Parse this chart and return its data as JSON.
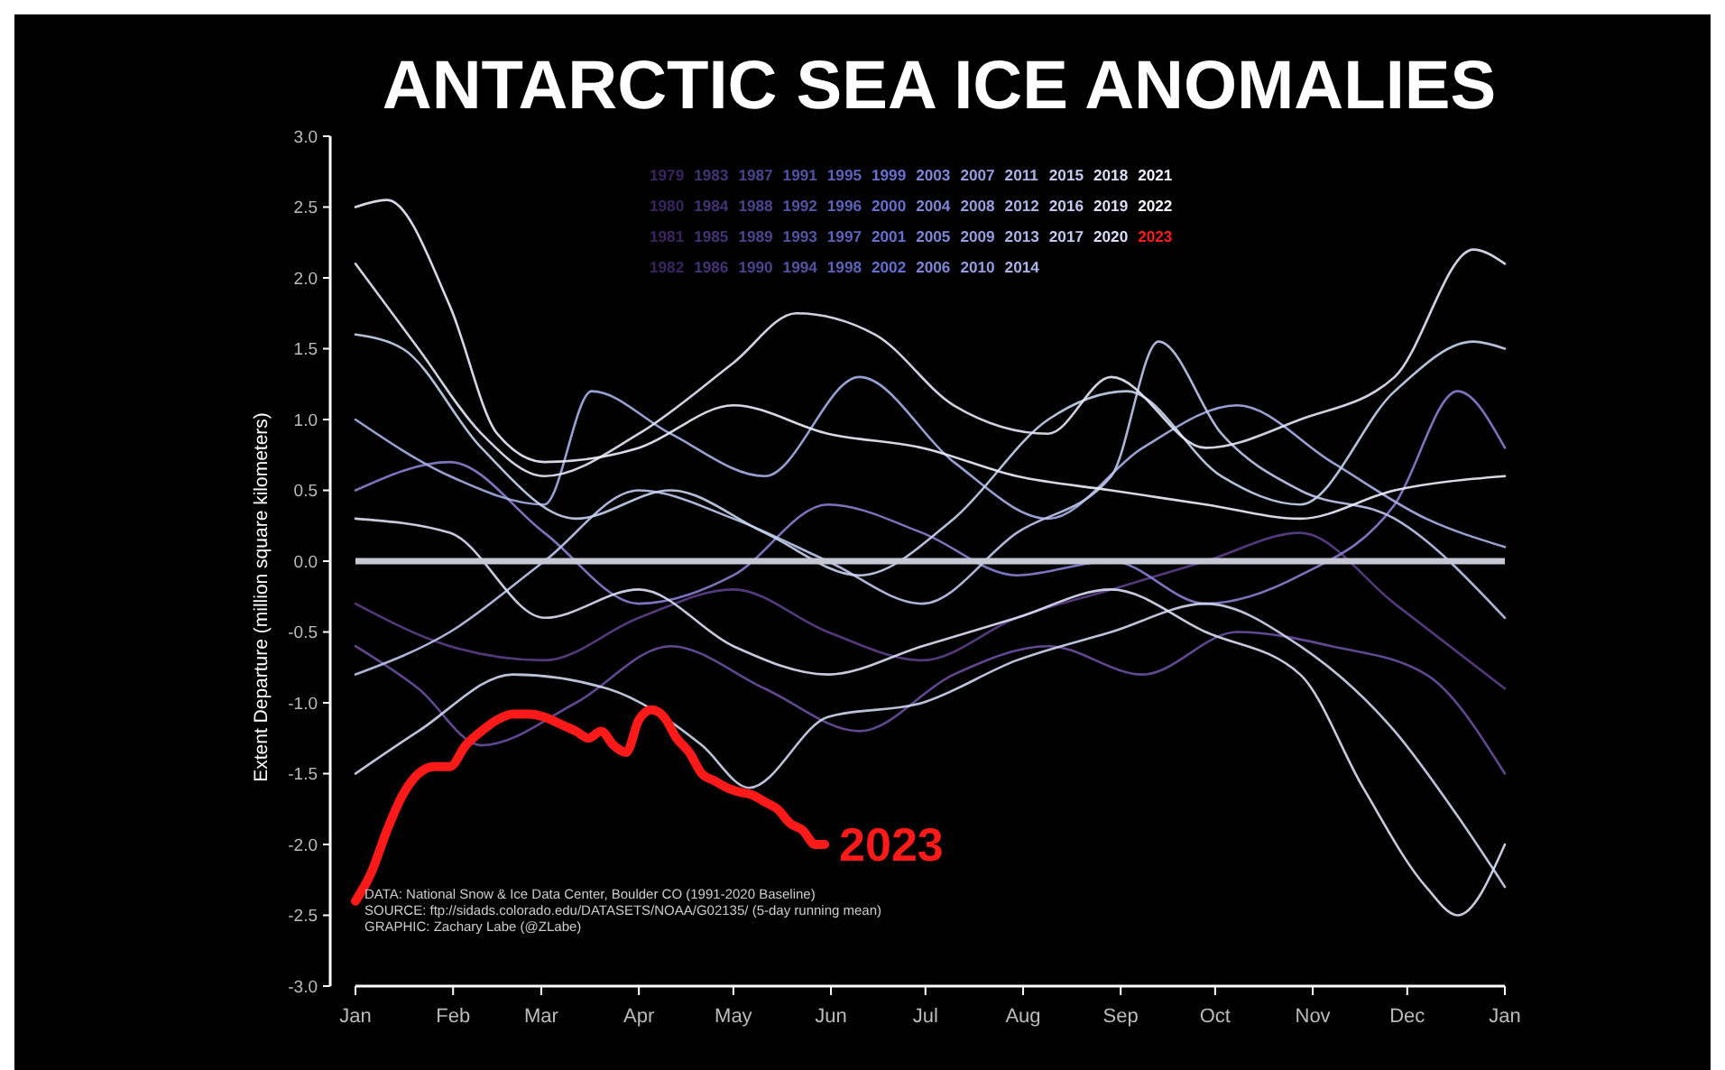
{
  "chart_data": {
    "type": "line",
    "title": "ANTARCTIC SEA ICE ANOMALIES",
    "ylabel": "Extent Departure (million square kilometers)",
    "xlim": [
      "2023-01-01",
      "2024-01-01"
    ],
    "xticks": [
      {
        "value": "2023-01-01",
        "label": "Jan"
      },
      {
        "value": "2023-02-01",
        "label": "Feb"
      },
      {
        "value": "2023-03-01",
        "label": "Mar"
      },
      {
        "value": "2023-04-01",
        "label": "Apr"
      },
      {
        "value": "2023-05-01",
        "label": "May"
      },
      {
        "value": "2023-06-01",
        "label": "Jun"
      },
      {
        "value": "2023-07-01",
        "label": "Jul"
      },
      {
        "value": "2023-08-01",
        "label": "Aug"
      },
      {
        "value": "2023-09-01",
        "label": "Sep"
      },
      {
        "value": "2023-10-01",
        "label": "Oct"
      },
      {
        "value": "2023-11-01",
        "label": "Nov"
      },
      {
        "value": "2023-12-01",
        "label": "Dec"
      },
      {
        "value": "2024-01-01",
        "label": "Jan"
      }
    ],
    "ylim": [
      -3,
      3
    ],
    "yticks": [
      {
        "value": 3,
        "label": "3.0"
      },
      {
        "value": 2.5,
        "label": "2.5"
      },
      {
        "value": 2,
        "label": "2.0"
      },
      {
        "value": 1.5,
        "label": "1.5"
      },
      {
        "value": 1,
        "label": "1.0"
      },
      {
        "value": 0.5,
        "label": "0.5"
      },
      {
        "value": 0,
        "label": "0.0"
      },
      {
        "value": -0.5,
        "label": "-0.5"
      },
      {
        "value": -1,
        "label": "-1.0"
      },
      {
        "value": -1.5,
        "label": "-1.5"
      },
      {
        "value": -2,
        "label": "-2.0"
      },
      {
        "value": -2.5,
        "label": "-2.5"
      },
      {
        "value": -3,
        "label": "-3.0"
      }
    ],
    "grid": false,
    "series": [
      {
        "color": "#5c3f8a",
        "x": [
          "2023-01-01",
          "2023-01-31",
          "2023-03-02",
          "2023-04-01",
          "2023-05-01",
          "2023-05-31",
          "2023-06-30",
          "2023-07-30",
          "2023-08-29",
          "2023-09-28",
          "2023-10-28",
          "2023-11-27",
          "2024-01-01"
        ],
        "values": [
          -0.3,
          -0.6,
          -0.7,
          -0.4,
          -0.2,
          -0.5,
          -0.7,
          -0.4,
          -0.2,
          0,
          0.2,
          -0.3,
          -0.9
        ]
      },
      {
        "color": "#6a4fa0",
        "x": [
          "2023-01-01",
          "2023-01-21",
          "2023-02-10",
          "2023-03-12",
          "2023-04-11",
          "2023-05-11",
          "2023-06-10",
          "2023-07-10",
          "2023-08-09",
          "2023-09-08",
          "2023-10-08",
          "2023-11-07",
          "2023-12-07",
          "2024-01-01"
        ],
        "values": [
          -0.6,
          -0.9,
          -1.3,
          -1,
          -0.6,
          -0.9,
          -1.2,
          -0.8,
          -0.6,
          -0.8,
          -0.5,
          -0.6,
          -0.8,
          -1.5
        ]
      },
      {
        "color": "#8a80d0",
        "x": [
          "2023-01-01",
          "2023-01-31",
          "2023-03-02",
          "2023-04-01",
          "2023-05-01",
          "2023-05-31",
          "2023-06-30",
          "2023-07-30",
          "2023-08-29",
          "2023-09-28",
          "2023-10-28",
          "2023-11-27",
          "2023-12-17",
          "2024-01-01"
        ],
        "values": [
          0.5,
          0.7,
          0.2,
          -0.3,
          -0.1,
          0.4,
          0.2,
          -0.1,
          0,
          -0.3,
          -0.1,
          0.4,
          1.2,
          0.8
        ]
      },
      {
        "color": "#a8b0e8",
        "x": [
          "2023-01-01",
          "2023-01-31",
          "2023-03-02",
          "2023-03-17",
          "2023-04-11",
          "2023-05-11",
          "2023-06-10",
          "2023-07-10",
          "2023-08-09",
          "2023-09-08",
          "2023-10-08",
          "2023-11-07",
          "2023-12-07",
          "2024-01-01"
        ],
        "values": [
          1,
          0.6,
          0.4,
          1.2,
          0.9,
          0.6,
          1.3,
          0.7,
          0.3,
          0.8,
          1.1,
          0.7,
          0.3,
          0.1
        ]
      },
      {
        "color": "#c0c8ee",
        "x": [
          "2023-01-01",
          "2023-01-31",
          "2023-03-02",
          "2023-04-01",
          "2023-05-01",
          "2023-05-31",
          "2023-06-30",
          "2023-07-30",
          "2023-08-29",
          "2023-09-13",
          "2023-10-03",
          "2023-10-28",
          "2023-11-27",
          "2024-01-01"
        ],
        "values": [
          -0.8,
          -0.5,
          0,
          0.5,
          0.3,
          0,
          -0.3,
          0.2,
          0.6,
          1.55,
          0.9,
          0.5,
          0.3,
          -0.4
        ]
      },
      {
        "color": "#c8d4f0",
        "x": [
          "2023-01-01",
          "2023-01-16",
          "2023-02-10",
          "2023-03-12",
          "2023-04-11",
          "2023-05-11",
          "2023-06-10",
          "2023-07-10",
          "2023-08-09",
          "2023-09-03",
          "2023-10-03",
          "2023-10-28",
          "2023-11-27",
          "2023-12-22",
          "2024-01-01"
        ],
        "values": [
          1.6,
          1.5,
          0.8,
          0.3,
          0.5,
          0.2,
          -0.1,
          0.3,
          1,
          1.2,
          0.6,
          0.4,
          1.2,
          1.55,
          1.5
        ]
      },
      {
        "color": "#d0d8f0",
        "x": [
          "2023-01-01",
          "2023-01-21",
          "2023-02-20",
          "2023-03-22",
          "2023-04-21",
          "2023-05-06",
          "2023-05-31",
          "2023-06-30",
          "2023-07-30",
          "2023-08-29",
          "2023-09-28",
          "2023-10-28",
          "2023-11-27",
          "2023-12-17",
          "2024-01-01"
        ],
        "values": [
          -1.5,
          -1.2,
          -0.8,
          -0.9,
          -1.3,
          -1.6,
          -1.1,
          -1,
          -0.7,
          -0.5,
          -0.3,
          -0.6,
          -1.2,
          -1.8,
          -2.3
        ]
      },
      {
        "color": "#dce0f4",
        "x": [
          "2023-01-01",
          "2023-01-31",
          "2023-03-02",
          "2023-04-01",
          "2023-05-01",
          "2023-05-31",
          "2023-06-30",
          "2023-07-30",
          "2023-08-29",
          "2023-09-28",
          "2023-10-28",
          "2023-11-17",
          "2023-12-07",
          "2023-12-17",
          "2024-01-01"
        ],
        "values": [
          0.3,
          0.2,
          -0.4,
          -0.2,
          -0.6,
          -0.8,
          -0.6,
          -0.4,
          -0.2,
          -0.5,
          -0.8,
          -1.6,
          -2.3,
          -2.5,
          -2
        ]
      },
      {
        "color": "#e4e8f8",
        "x": [
          "2023-01-01",
          "2023-01-21",
          "2023-02-10",
          "2023-03-02",
          "2023-04-01",
          "2023-05-01",
          "2023-05-21",
          "2023-06-15",
          "2023-07-10",
          "2023-08-09",
          "2023-08-29",
          "2023-09-28",
          "2023-10-28",
          "2023-11-27",
          "2023-12-22",
          "2024-01-01"
        ],
        "values": [
          2.1,
          1.5,
          0.9,
          0.6,
          0.9,
          1.4,
          1.75,
          1.6,
          1.1,
          0.9,
          1.3,
          0.8,
          1,
          1.3,
          2.2,
          2.1
        ]
      },
      {
        "color": "#eeeeff",
        "x": [
          "2023-01-01",
          "2023-01-11",
          "2023-01-31",
          "2023-02-15",
          "2023-03-02",
          "2023-04-01",
          "2023-05-01",
          "2023-05-31",
          "2023-06-30",
          "2023-07-30",
          "2023-08-29",
          "2023-09-28",
          "2023-10-28",
          "2023-11-27",
          "2024-01-01"
        ],
        "values": [
          2.5,
          2.55,
          1.8,
          0.9,
          0.7,
          0.8,
          1.1,
          0.9,
          0.8,
          0.6,
          0.5,
          0.4,
          0.3,
          0.5,
          0.6
        ]
      },
      {
        "name": "2023",
        "color": "#ff1a1a",
        "x": [
          "2023-01-01",
          "2023-01-06",
          "2023-01-11",
          "2023-01-16",
          "2023-01-21",
          "2023-01-26",
          "2023-01-31",
          "2023-02-05",
          "2023-02-10",
          "2023-02-15",
          "2023-02-20",
          "2023-02-25",
          "2023-03-02",
          "2023-03-07",
          "2023-03-12",
          "2023-03-16",
          "2023-03-20",
          "2023-03-24",
          "2023-03-28",
          "2023-04-01",
          "2023-04-05",
          "2023-04-09",
          "2023-04-13",
          "2023-04-17",
          "2023-04-21",
          "2023-04-25",
          "2023-04-29",
          "2023-05-03",
          "2023-05-07",
          "2023-05-11",
          "2023-05-15",
          "2023-05-19",
          "2023-05-23",
          "2023-05-27",
          "2023-05-30"
        ],
        "values": [
          -2.4,
          -2.2,
          -1.9,
          -1.65,
          -1.5,
          -1.45,
          -1.45,
          -1.3,
          -1.2,
          -1.12,
          -1.08,
          -1.08,
          -1.1,
          -1.15,
          -1.2,
          -1.25,
          -1.2,
          -1.3,
          -1.35,
          -1.12,
          -1.05,
          -1.1,
          -1.25,
          -1.35,
          -1.5,
          -1.55,
          -1.6,
          -1.63,
          -1.65,
          -1.7,
          -1.75,
          -1.85,
          -1.9,
          -2,
          -2
        ]
      }
    ],
    "ref_lines": [
      {
        "axis": "y",
        "value": 0,
        "color": "#c8c8d4"
      }
    ],
    "annotations": [
      "1979 1983 1987 1991 1995 1999 2003 2007 2011 2015 2018 2021",
      "1980 1984 1988 1992 1996 2000 2004 2008 2012 2016 2019 2022",
      "1981 1985 1989 1993 1997 2001 2005 2009 2013 2017 2020 2023",
      "1982 1986 1990 1994 1998 2002 2006 2010 2014",
      "DATA: National Snow & Ice Data Center, Boulder CO (1991-2020 Baseline)",
      "SOURCE: ftp://sidads.colorado.edu/DATASETS/NOAA/G02135/ (5-day running mean)",
      "GRAPHIC: Zachary Labe (@ZLabe)"
    ]
  }
}
